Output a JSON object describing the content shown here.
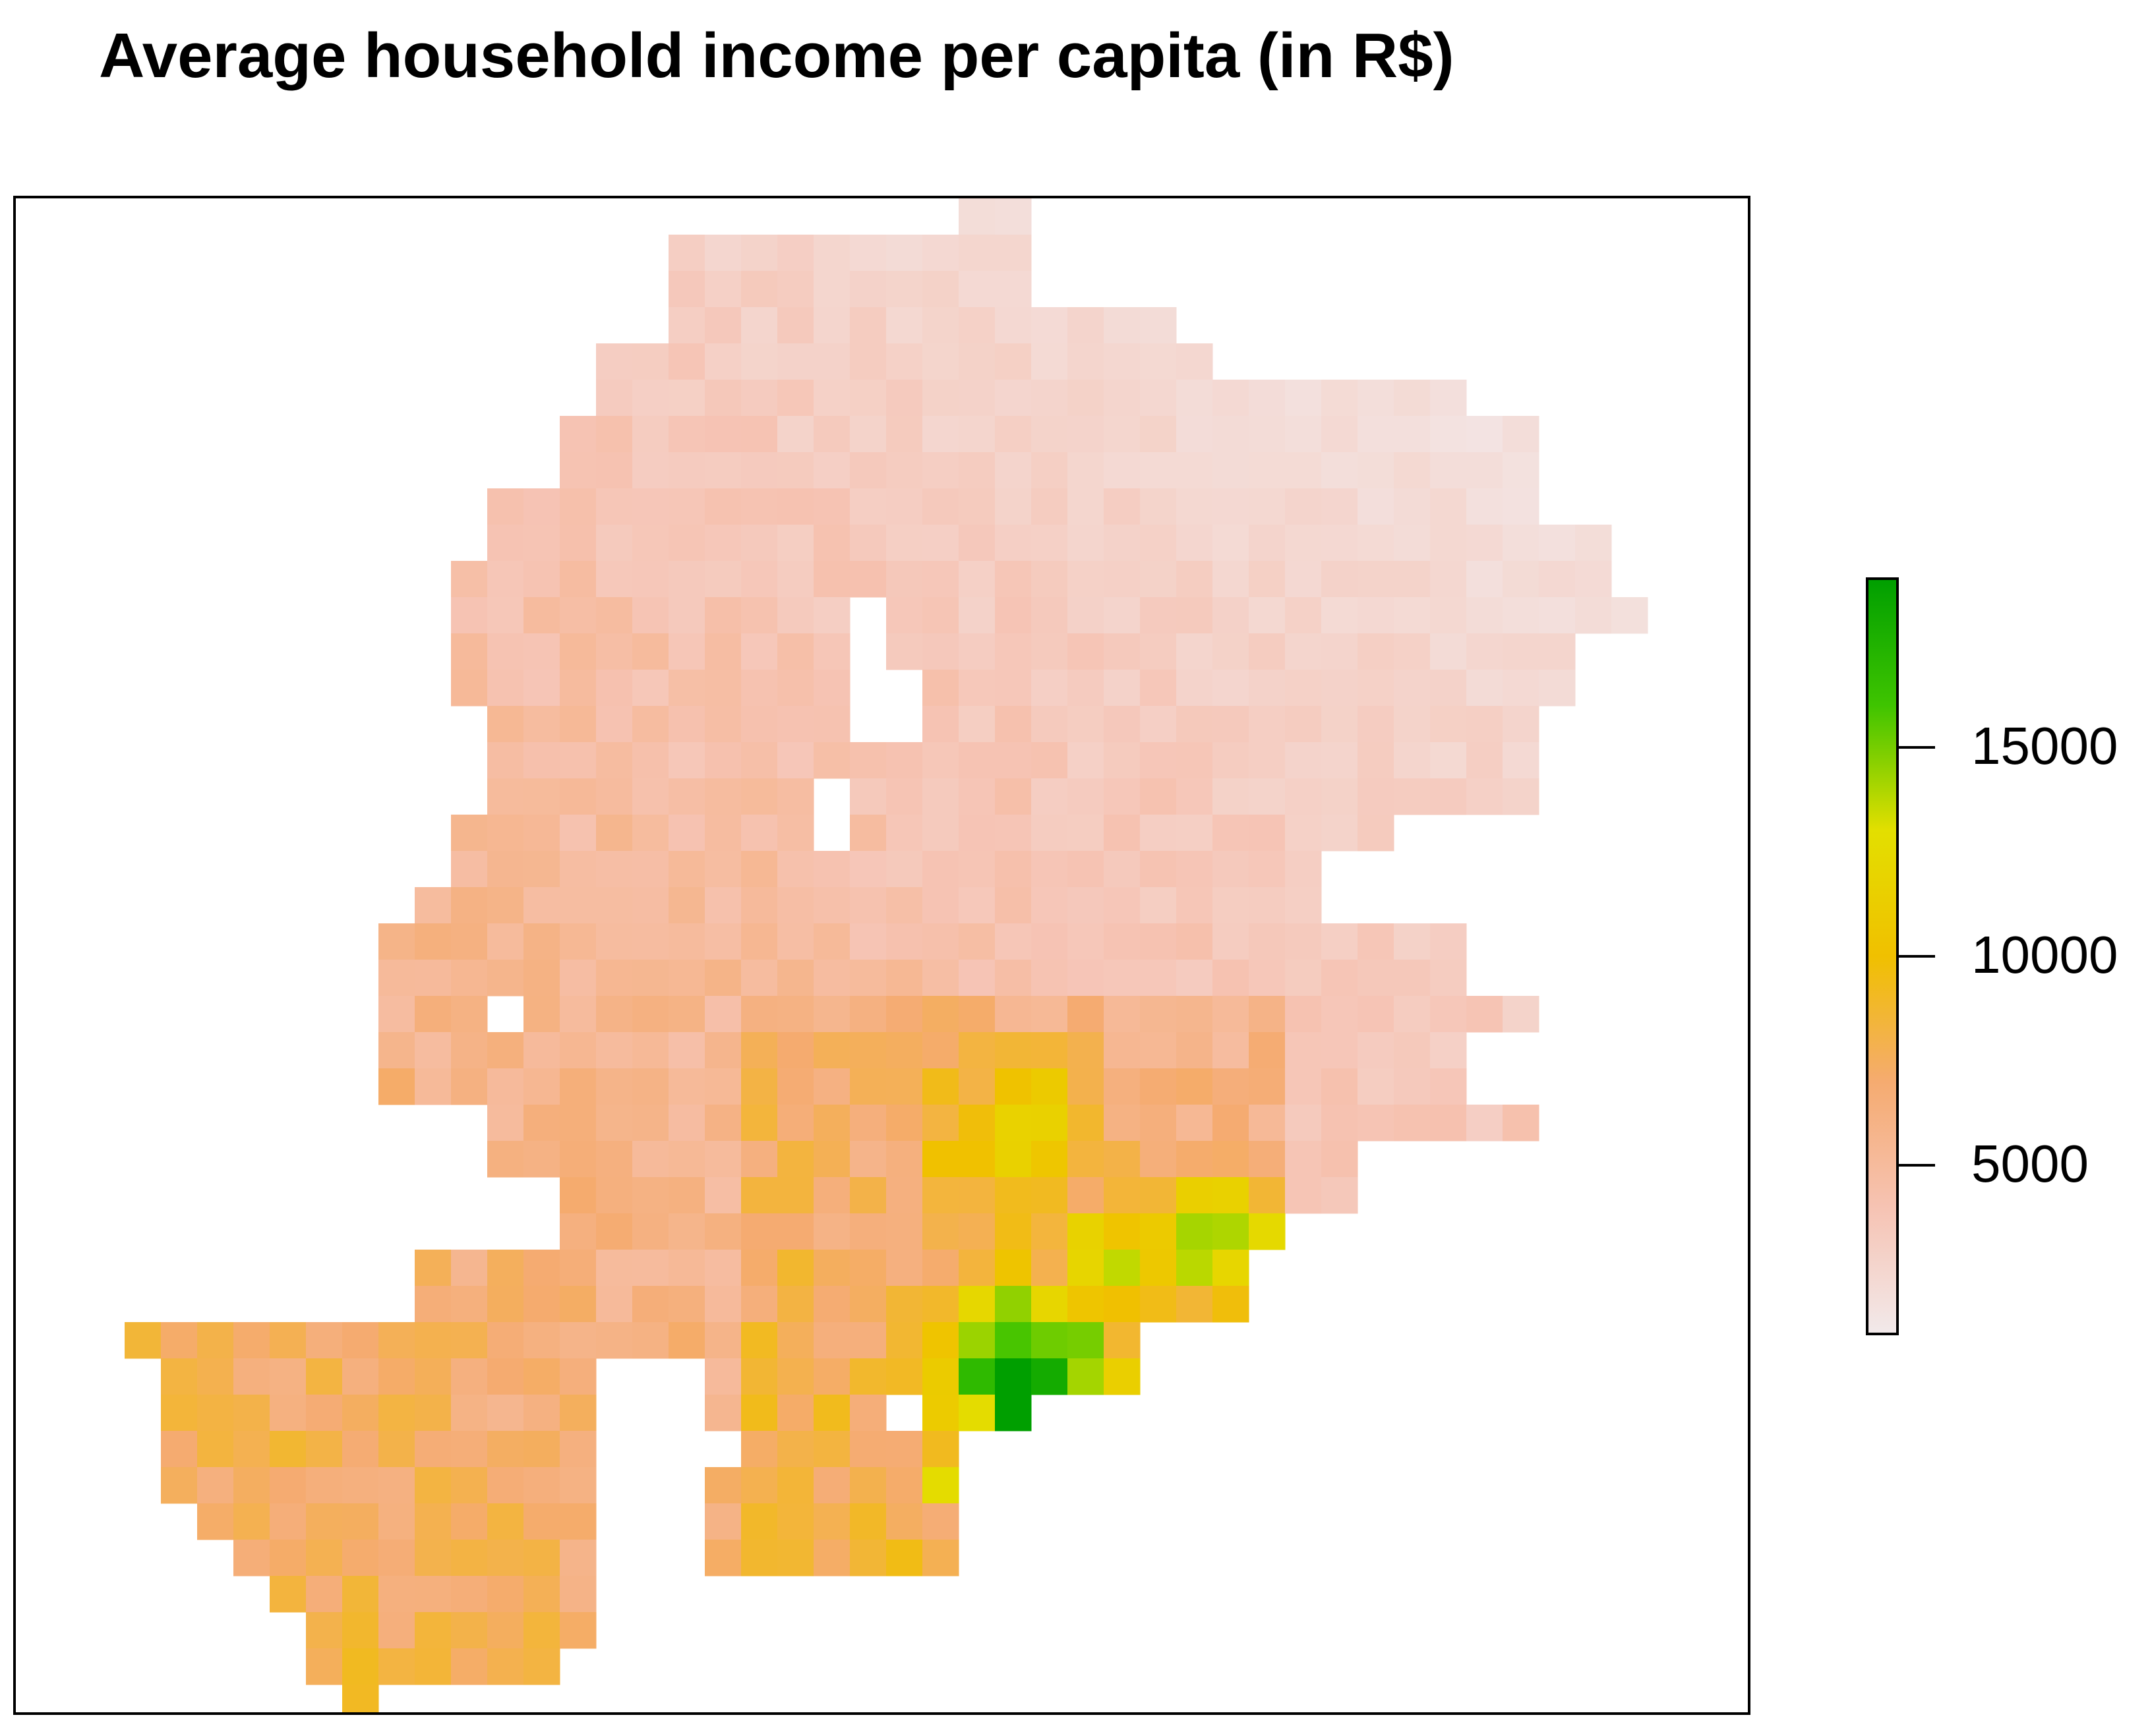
{
  "title": "Average household income per capita (in R$)",
  "chart_data": {
    "type": "heatmap",
    "title": "Average household income per capita (in R$)",
    "xlabel": "",
    "ylabel": "",
    "legend": {
      "placement": "right",
      "min": 1000,
      "max": 19000,
      "ticks": [
        5000,
        10000,
        15000
      ],
      "colors": [
        "#f2e9ea",
        "#f6c3b3",
        "#f5ab70",
        "#f0c000",
        "#e3df00",
        "#3fc400",
        "#009f00"
      ]
    }
  }
}
